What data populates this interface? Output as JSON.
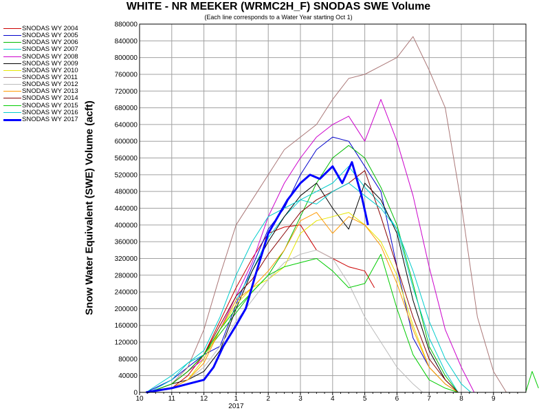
{
  "chart_data": {
    "type": "line",
    "title": "WHITE - NR MEEKER (WRMC2H_F) SNODAS SWE Volume",
    "subtitle": "(Each line corresponds to a Water Year starting Oct 1)",
    "ylabel": "Snow Water Equivalent (SWE) Volume (acft)",
    "xlabel": "",
    "ylim": [
      0,
      880000
    ],
    "y_ticks": [
      0,
      40000,
      80000,
      120000,
      160000,
      200000,
      240000,
      280000,
      320000,
      360000,
      400000,
      440000,
      480000,
      520000,
      560000,
      600000,
      640000,
      680000,
      720000,
      760000,
      800000,
      840000,
      880000
    ],
    "y_tick_labels": [
      "0",
      "40000",
      "80000",
      "120000",
      "160000",
      "200000",
      "240000",
      "280000",
      "320000",
      "360000",
      "400000",
      "440000",
      "480000",
      "520000",
      "560000",
      "600000",
      "640000",
      "680000",
      "720000",
      "760000",
      "800000",
      "840000",
      "880000"
    ],
    "x_unit": "month of water year (0 = Oct 1)",
    "xlim": [
      0,
      12
    ],
    "x_ticks": [
      0,
      1,
      2,
      3,
      4,
      5,
      6,
      7,
      8,
      9,
      10,
      11
    ],
    "x_tick_labels": [
      "10",
      "11",
      "12",
      "1",
      "2",
      "3",
      "4",
      "5",
      "6",
      "7",
      "8",
      "9"
    ],
    "x_year_label": "2017",
    "grid": true,
    "legend_position": "left",
    "series": [
      {
        "name": "SNODAS WY 2004",
        "color": "#cc0000",
        "width": 1,
        "x": [
          0.3,
          1.0,
          1.5,
          2.0,
          2.5,
          3.0,
          3.5,
          4.0,
          4.5,
          5.0,
          5.5,
          6.0,
          6.5,
          7.0,
          7.3
        ],
        "y": [
          0,
          10000,
          40000,
          90000,
          170000,
          250000,
          320000,
          380000,
          395000,
          400000,
          340000,
          320000,
          300000,
          290000,
          250000
        ]
      },
      {
        "name": "SNODAS WY 2005",
        "color": "#0000cc",
        "width": 1,
        "x": [
          0.2,
          1.0,
          1.5,
          2.0,
          2.5,
          3.0,
          3.5,
          4.0,
          4.5,
          5.0,
          5.5,
          6.0,
          6.5,
          7.0,
          7.5,
          8.0,
          8.5,
          9.0,
          9.5,
          9.9
        ],
        "y": [
          0,
          30000,
          60000,
          90000,
          110000,
          210000,
          300000,
          390000,
          440000,
          520000,
          580000,
          610000,
          600000,
          540000,
          480000,
          300000,
          130000,
          60000,
          20000,
          0
        ]
      },
      {
        "name": "SNODAS WY 2006",
        "color": "#00bb00",
        "width": 1,
        "x": [
          0.3,
          1.0,
          1.5,
          2.0,
          2.5,
          3.0,
          3.5,
          4.0,
          4.5,
          5.0,
          5.5,
          6.0,
          6.5,
          7.0,
          7.5,
          8.0,
          8.5,
          9.0,
          9.5,
          9.9
        ],
        "y": [
          0,
          20000,
          50000,
          90000,
          140000,
          190000,
          240000,
          280000,
          340000,
          420000,
          500000,
          560000,
          590000,
          560000,
          490000,
          400000,
          260000,
          110000,
          40000,
          0
        ]
      },
      {
        "name": "SNODAS WY 2007",
        "color": "#00cccc",
        "width": 1,
        "x": [
          0.2,
          1.0,
          1.5,
          2.0,
          2.5,
          3.0,
          3.5,
          4.0,
          4.5,
          5.0,
          5.5,
          6.0,
          6.5,
          7.0,
          7.5,
          8.0,
          8.5,
          9.0,
          9.5,
          9.9
        ],
        "y": [
          0,
          40000,
          70000,
          90000,
          150000,
          220000,
          290000,
          370000,
          420000,
          460000,
          480000,
          500000,
          540000,
          490000,
          450000,
          390000,
          250000,
          130000,
          50000,
          0
        ]
      },
      {
        "name": "SNODAS WY 2008",
        "color": "#cc00cc",
        "width": 1,
        "x": [
          0.3,
          1.0,
          1.5,
          2.0,
          2.5,
          3.0,
          3.5,
          4.0,
          4.5,
          5.0,
          5.5,
          6.0,
          6.5,
          7.0,
          7.5,
          8.0,
          8.5,
          9.0,
          9.5,
          10.0,
          10.4
        ],
        "y": [
          0,
          20000,
          50000,
          80000,
          150000,
          230000,
          310000,
          420000,
          500000,
          560000,
          610000,
          640000,
          660000,
          600000,
          700000,
          600000,
          470000,
          300000,
          150000,
          60000,
          0
        ]
      },
      {
        "name": "SNODAS WY 2009",
        "color": "#000000",
        "width": 1,
        "x": [
          0.3,
          1.0,
          1.5,
          2.0,
          2.5,
          3.0,
          3.5,
          4.0,
          4.5,
          5.0,
          5.5,
          6.0,
          6.5,
          7.0,
          7.5,
          8.0,
          8.5,
          9.0,
          9.5,
          9.9
        ],
        "y": [
          0,
          20000,
          30000,
          50000,
          100000,
          200000,
          290000,
          360000,
          420000,
          470000,
          500000,
          440000,
          390000,
          500000,
          460000,
          380000,
          220000,
          100000,
          30000,
          0
        ]
      },
      {
        "name": "SNODAS WY 2010",
        "color": "#e6e600",
        "width": 1,
        "x": [
          0.3,
          1.0,
          1.5,
          2.0,
          2.5,
          3.0,
          3.5,
          4.0,
          4.5,
          5.0,
          5.5,
          6.0,
          6.5,
          7.0,
          7.5,
          8.0,
          8.5,
          9.0,
          9.5,
          9.9
        ],
        "y": [
          0,
          10000,
          30000,
          80000,
          150000,
          210000,
          250000,
          270000,
          300000,
          380000,
          410000,
          420000,
          430000,
          400000,
          360000,
          280000,
          160000,
          60000,
          20000,
          0
        ]
      },
      {
        "name": "SNODAS WY 2011",
        "color": "#aa7777",
        "width": 1,
        "x": [
          0.3,
          1.0,
          1.5,
          2.0,
          2.5,
          3.0,
          3.5,
          4.0,
          4.5,
          5.0,
          5.5,
          6.0,
          6.5,
          7.0,
          7.5,
          8.0,
          8.5,
          9.0,
          9.5,
          10.0,
          10.5,
          11.0,
          11.4
        ],
        "y": [
          0,
          20000,
          60000,
          150000,
          280000,
          400000,
          460000,
          520000,
          580000,
          610000,
          640000,
          700000,
          750000,
          760000,
          780000,
          800000,
          850000,
          770000,
          680000,
          450000,
          180000,
          50000,
          0
        ]
      },
      {
        "name": "SNODAS WY 2012",
        "color": "#bbbbbb",
        "width": 1,
        "x": [
          0.3,
          1.0,
          1.5,
          2.0,
          2.5,
          3.0,
          3.5,
          4.0,
          4.5,
          5.0,
          5.5,
          6.0,
          6.5,
          7.0,
          7.5,
          8.0,
          8.5,
          8.8
        ],
        "y": [
          0,
          10000,
          30000,
          60000,
          110000,
          170000,
          220000,
          270000,
          310000,
          330000,
          340000,
          320000,
          260000,
          180000,
          120000,
          60000,
          20000,
          0
        ]
      },
      {
        "name": "SNODAS WY 2013",
        "color": "#ff9900",
        "width": 1,
        "x": [
          0.3,
          1.0,
          1.5,
          2.0,
          2.5,
          3.0,
          3.5,
          4.0,
          4.5,
          5.0,
          5.5,
          6.0,
          6.5,
          7.0,
          7.5,
          8.0,
          8.5,
          9.0,
          9.5,
          9.9
        ],
        "y": [
          0,
          10000,
          30000,
          70000,
          150000,
          220000,
          250000,
          290000,
          340000,
          410000,
          430000,
          380000,
          420000,
          400000,
          350000,
          260000,
          150000,
          60000,
          20000,
          0
        ]
      },
      {
        "name": "SNODAS WY 2014",
        "color": "#880000",
        "width": 1,
        "x": [
          0.3,
          1.0,
          1.5,
          2.0,
          2.5,
          3.0,
          3.5,
          4.0,
          4.5,
          5.0,
          5.5,
          6.0,
          6.5,
          7.0,
          7.5,
          8.0,
          8.5,
          9.0,
          9.5,
          9.9
        ],
        "y": [
          0,
          20000,
          50000,
          90000,
          160000,
          230000,
          270000,
          330000,
          380000,
          430000,
          460000,
          480000,
          500000,
          530000,
          420000,
          300000,
          180000,
          80000,
          30000,
          0
        ]
      },
      {
        "name": "SNODAS WY 2015",
        "color": "#00cc00",
        "width": 1,
        "x": [
          0.3,
          1.0,
          1.5,
          2.0,
          2.5,
          3.0,
          3.5,
          4.0,
          4.5,
          5.0,
          5.5,
          6.0,
          6.5,
          7.0,
          7.5,
          8.0,
          8.5,
          9.0,
          9.5,
          9.9,
          12.0,
          12.2,
          12.4
        ],
        "y": [
          0,
          20000,
          50000,
          90000,
          150000,
          200000,
          240000,
          280000,
          300000,
          310000,
          320000,
          290000,
          250000,
          260000,
          330000,
          200000,
          90000,
          30000,
          10000,
          0,
          0,
          50000,
          10000
        ]
      },
      {
        "name": "SNODAS WY 2016",
        "color": "#00cccc",
        "width": 1,
        "x": [
          0.3,
          1.0,
          1.5,
          2.0,
          2.5,
          3.0,
          3.5,
          4.0,
          4.5,
          5.0,
          5.5,
          6.0,
          6.5,
          7.0,
          7.5,
          8.0,
          8.5,
          9.0,
          9.5,
          10.0,
          10.3
        ],
        "y": [
          0,
          30000,
          70000,
          100000,
          180000,
          280000,
          360000,
          420000,
          440000,
          460000,
          450000,
          480000,
          500000,
          470000,
          440000,
          390000,
          290000,
          170000,
          80000,
          20000,
          0
        ]
      },
      {
        "name": "SNODAS WY 2017",
        "color": "#0000ff",
        "width": 3,
        "x": [
          0.2,
          1.0,
          1.5,
          2.0,
          2.3,
          2.6,
          3.0,
          3.3,
          3.6,
          4.0,
          4.3,
          4.6,
          5.0,
          5.3,
          5.6,
          6.0,
          6.3,
          6.6,
          6.9,
          7.1
        ],
        "y": [
          0,
          10000,
          20000,
          30000,
          60000,
          110000,
          160000,
          200000,
          280000,
          380000,
          420000,
          460000,
          500000,
          520000,
          510000,
          540000,
          500000,
          550000,
          470000,
          400000
        ]
      }
    ]
  }
}
